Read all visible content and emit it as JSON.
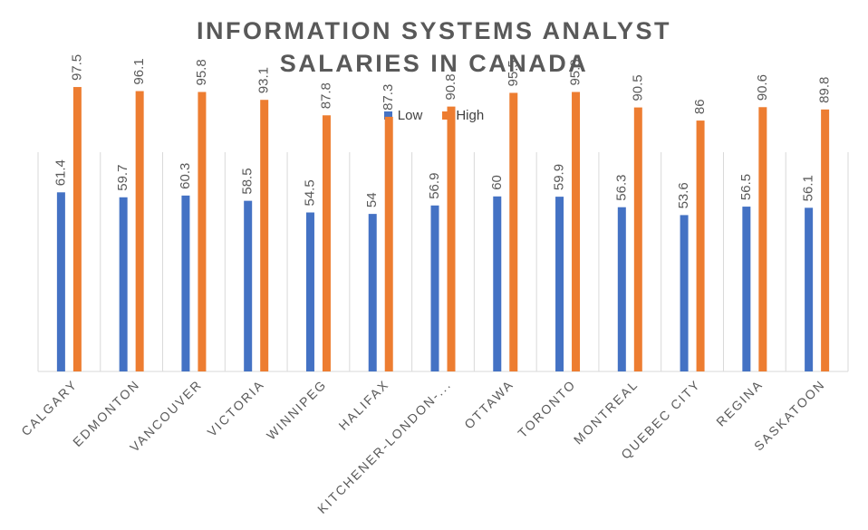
{
  "chart_data": {
    "type": "bar",
    "title_lines": [
      "INFORMATION SYSTEMS ANALYST",
      "SALARIES IN CANADA"
    ],
    "categories": [
      "CALGARY",
      "EDMONTON",
      "VANCOUVER",
      "VICTORIA",
      "WINNIPEG",
      "HALIFAX",
      "KITCHENER-LONDON-...",
      "OTTAWA",
      "TORONTO",
      "MONTREAL",
      "QUEBEC CITY",
      "REGINA",
      "SASKATOON"
    ],
    "series": [
      {
        "name": "Low",
        "color": "#4472C4",
        "values": [
          61.4,
          59.7,
          60.3,
          58.5,
          54.5,
          54,
          56.9,
          60,
          59.9,
          56.3,
          53.6,
          56.5,
          56.1
        ]
      },
      {
        "name": "High",
        "color": "#ED7D31",
        "values": [
          97.5,
          96.1,
          95.8,
          93.1,
          87.8,
          87.3,
          90.8,
          95.5,
          95.8,
          90.5,
          86,
          90.6,
          89.8
        ]
      }
    ],
    "ylim": [
      0,
      100
    ],
    "legend_position": "top",
    "grid": "vertical category separators"
  }
}
